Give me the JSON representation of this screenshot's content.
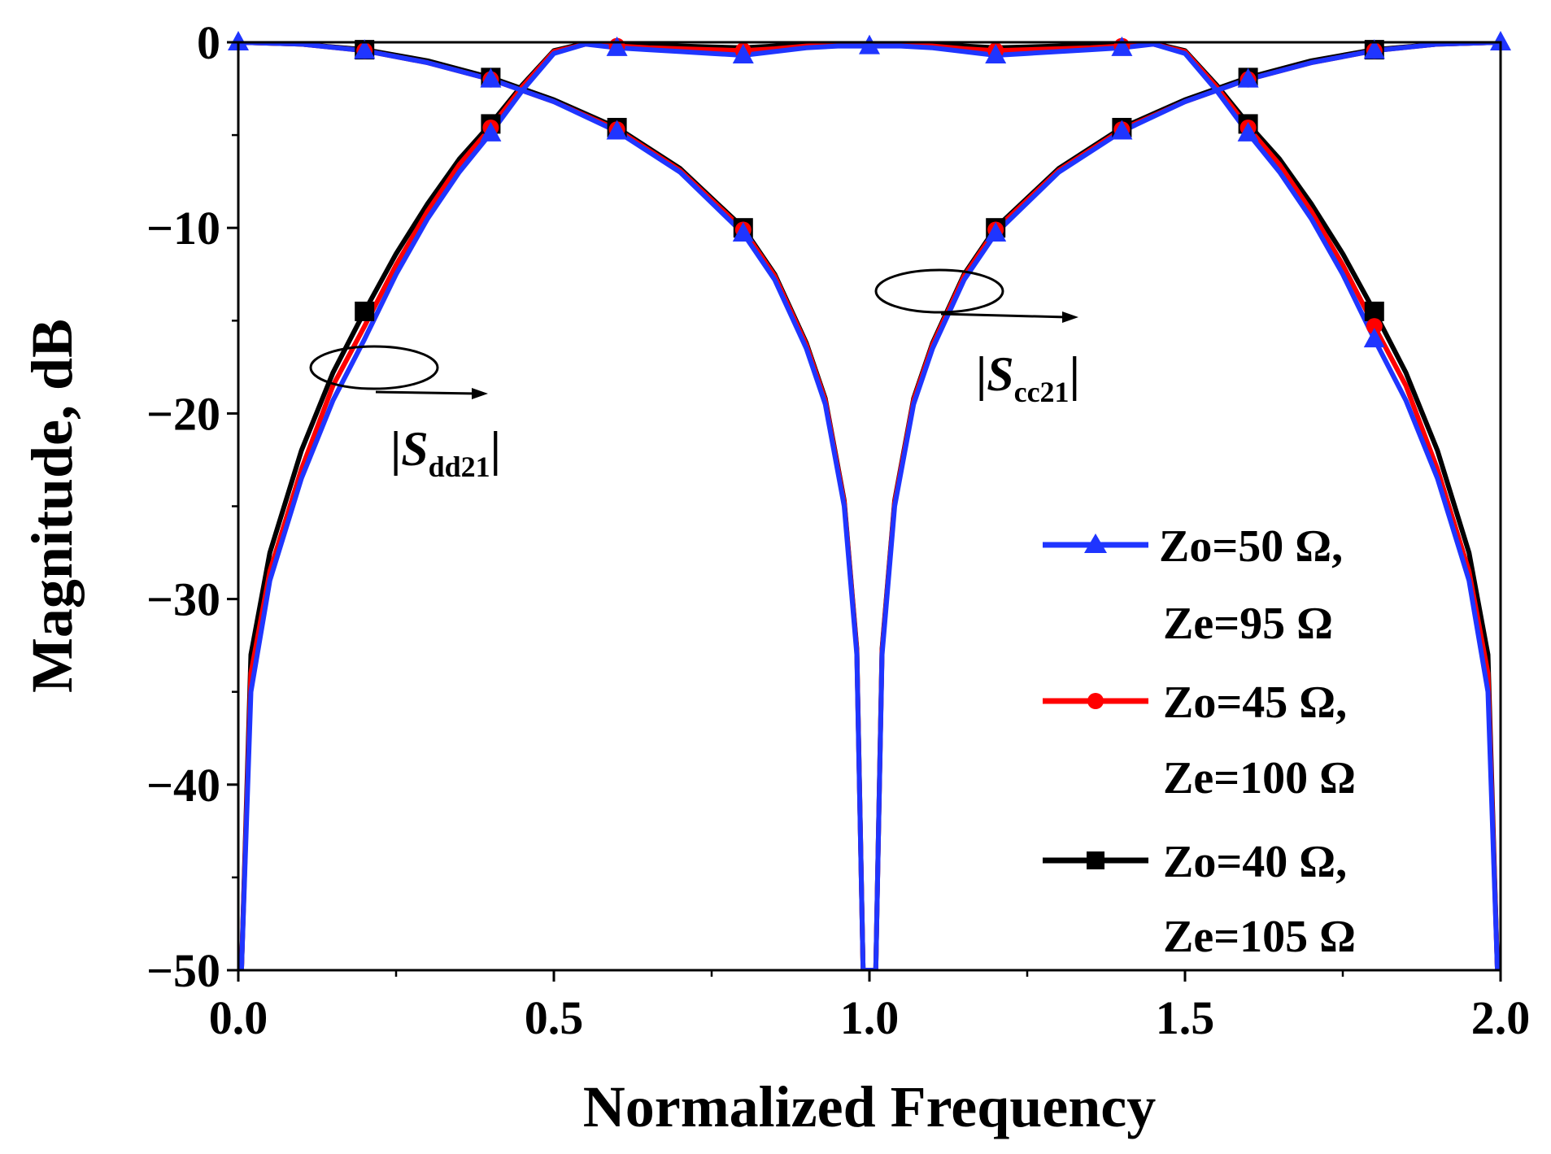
{
  "chart_data": {
    "type": "line",
    "title": "",
    "xlabel": "Normalized Frequency",
    "ylabel": "Magnitude, dB",
    "xlim": [
      0.0,
      2.0
    ],
    "ylim": [
      -50,
      0
    ],
    "x_ticks": [
      "0.0",
      "0.5",
      "1.0",
      "1.5",
      "2.0"
    ],
    "y_ticks": [
      "0",
      "−10",
      "−20",
      "−30",
      "−40",
      "−50"
    ],
    "grid": false,
    "legend_position": "lower-right",
    "legend": [
      {
        "line1": "Zo=50 Ω,",
        "line2": "Ze=95 Ω",
        "color": "#1f35ff",
        "marker": "triangle"
      },
      {
        "line1": "Zo=45 Ω,",
        "line2": "Ze=100 Ω",
        "color": "#ff0000",
        "marker": "circle"
      },
      {
        "line1": "Zo=40 Ω,",
        "line2": "Ze=105 Ω",
        "color": "#000000",
        "marker": "square"
      }
    ],
    "annotations": [
      {
        "bar": "|",
        "symbol": "S",
        "subscript": "dd21",
        "bar_end": "|"
      },
      {
        "bar": "|",
        "symbol": "S",
        "subscript": "cc21",
        "bar_end": "|"
      }
    ],
    "series": [
      {
        "name": "Zo=50 Ω, Ze=95 Ω",
        "color": "#1f35ff",
        "marker": "triangle",
        "marker_x": [
          0.0,
          0.2,
          0.4,
          0.6,
          0.8,
          1.0,
          1.2,
          1.4,
          1.6,
          1.8,
          2.0
        ],
        "curves": {
          "sdd21": {
            "x": [
              0.005,
              0.02,
              0.05,
              0.1,
              0.15,
              0.2,
              0.25,
              0.3,
              0.35,
              0.4,
              0.45,
              0.5,
              0.55,
              0.6,
              0.65,
              0.7,
              0.75,
              0.8,
              0.85,
              0.9,
              0.95,
              1.0,
              1.05,
              1.1,
              1.15,
              1.2,
              1.25,
              1.3,
              1.35,
              1.4,
              1.45,
              1.5,
              1.55,
              1.6,
              1.65,
              1.7,
              1.75,
              1.8,
              1.85,
              1.9,
              1.95,
              1.98,
              1.995
            ],
            "y": [
              -50,
              -35,
              -29,
              -23.5,
              -19.3,
              -16,
              -12.5,
              -9.5,
              -7,
              -4.9,
              -2.6,
              -0.6,
              -0.1,
              -0.3,
              -0.4,
              -0.5,
              -0.6,
              -0.7,
              -0.5,
              -0.3,
              -0.2,
              -0.2,
              -0.2,
              -0.3,
              -0.5,
              -0.7,
              -0.6,
              -0.5,
              -0.4,
              -0.3,
              -0.1,
              -0.6,
              -2.6,
              -4.9,
              -7,
              -9.5,
              -12.5,
              -16,
              -19.3,
              -23.5,
              -29,
              -35,
              -50
            ]
          },
          "scc21": {
            "x": [
              0.0,
              0.1,
              0.2,
              0.3,
              0.4,
              0.5,
              0.6,
              0.7,
              0.8,
              0.85,
              0.9,
              0.93,
              0.96,
              0.98,
              0.99,
              1.01,
              1.02,
              1.04,
              1.07,
              1.1,
              1.15,
              1.2,
              1.3,
              1.4,
              1.5,
              1.6,
              1.7,
              1.8,
              1.9,
              2.0
            ],
            "y": [
              0,
              -0.1,
              -0.45,
              -1.1,
              -2.0,
              -3.2,
              -4.8,
              -7.0,
              -10.3,
              -12.8,
              -16.5,
              -19.5,
              -25,
              -33,
              -50,
              -50,
              -33,
              -25,
              -19.5,
              -16.5,
              -12.8,
              -10.3,
              -7.0,
              -4.8,
              -3.2,
              -2.0,
              -1.1,
              -0.45,
              -0.1,
              0
            ]
          }
        },
        "markers": {
          "sdd21": [
            [
              0.4,
              -4.9
            ],
            [
              0.6,
              -0.3
            ],
            [
              0.8,
              -0.7
            ],
            [
              1.0,
              -0.2
            ],
            [
              1.2,
              -0.7
            ],
            [
              1.4,
              -0.3
            ],
            [
              1.6,
              -4.9
            ],
            [
              1.8,
              -16
            ]
          ],
          "scc21": [
            [
              0.0,
              0
            ],
            [
              0.2,
              -0.45
            ],
            [
              0.4,
              -2.0
            ],
            [
              0.6,
              -4.8
            ],
            [
              0.8,
              -10.3
            ],
            [
              1.2,
              -10.3
            ],
            [
              1.4,
              -4.8
            ],
            [
              1.6,
              -2.0
            ],
            [
              1.8,
              -0.45
            ],
            [
              2.0,
              0
            ]
          ]
        }
      },
      {
        "name": "Zo=45 Ω, Ze=100 Ω",
        "color": "#ff0000",
        "marker": "circle",
        "marker_x": [
          0.0,
          0.2,
          0.4,
          0.6,
          0.8,
          1.0,
          1.2,
          1.4,
          1.6,
          1.8,
          2.0
        ],
        "curves": {
          "sdd21": {
            "x": [
              0.005,
              0.02,
              0.05,
              0.1,
              0.15,
              0.2,
              0.25,
              0.3,
              0.35,
              0.4,
              0.45,
              0.5,
              0.55,
              0.6,
              0.65,
              0.7,
              0.75,
              0.8,
              0.85,
              0.9,
              0.95,
              1.0,
              1.05,
              1.1,
              1.15,
              1.2,
              1.25,
              1.3,
              1.35,
              1.4,
              1.45,
              1.5,
              1.55,
              1.6,
              1.65,
              1.7,
              1.75,
              1.8,
              1.85,
              1.9,
              1.95,
              1.98,
              1.995
            ],
            "y": [
              -50,
              -34,
              -28.5,
              -23,
              -18.5,
              -15.3,
              -12,
              -9.1,
              -6.6,
              -4.6,
              -2.4,
              -0.5,
              -0.1,
              -0.2,
              -0.3,
              -0.35,
              -0.4,
              -0.45,
              -0.35,
              -0.2,
              -0.15,
              -0.15,
              -0.15,
              -0.2,
              -0.35,
              -0.45,
              -0.4,
              -0.35,
              -0.3,
              -0.2,
              -0.1,
              -0.5,
              -2.4,
              -4.6,
              -6.6,
              -9.1,
              -12,
              -15.3,
              -18.5,
              -23,
              -28.5,
              -34,
              -50
            ]
          },
          "scc21": {
            "x": [
              0.0,
              0.1,
              0.2,
              0.3,
              0.4,
              0.5,
              0.6,
              0.7,
              0.8,
              0.85,
              0.9,
              0.93,
              0.96,
              0.98,
              0.99,
              1.01,
              1.02,
              1.04,
              1.07,
              1.1,
              1.15,
              1.2,
              1.3,
              1.4,
              1.5,
              1.6,
              1.7,
              1.8,
              1.9,
              2.0
            ],
            "y": [
              0,
              -0.1,
              -0.45,
              -1.1,
              -2.0,
              -3.2,
              -4.7,
              -6.9,
              -10.1,
              -12.6,
              -16.3,
              -19.3,
              -24.8,
              -32.8,
              -50,
              -50,
              -32.8,
              -24.8,
              -19.3,
              -16.3,
              -12.6,
              -10.1,
              -6.9,
              -4.7,
              -3.2,
              -2.0,
              -1.1,
              -0.45,
              -0.1,
              0
            ]
          }
        },
        "markers": {
          "sdd21": [
            [
              0.4,
              -4.6
            ],
            [
              0.6,
              -0.2
            ],
            [
              0.8,
              -0.45
            ],
            [
              1.2,
              -0.45
            ],
            [
              1.4,
              -0.2
            ],
            [
              1.6,
              -4.6
            ],
            [
              1.8,
              -15.3
            ]
          ],
          "scc21": [
            [
              0.2,
              -0.45
            ],
            [
              0.4,
              -2.0
            ],
            [
              0.6,
              -4.7
            ],
            [
              0.8,
              -10.1
            ],
            [
              1.2,
              -10.1
            ],
            [
              1.4,
              -4.7
            ],
            [
              1.6,
              -2.0
            ],
            [
              1.8,
              -0.45
            ]
          ]
        }
      },
      {
        "name": "Zo=40 Ω, Ze=105 Ω",
        "color": "#000000",
        "marker": "square",
        "marker_x": [
          0.0,
          0.2,
          0.4,
          0.6,
          0.8,
          1.0,
          1.2,
          1.4,
          1.6,
          1.8,
          2.0
        ],
        "curves": {
          "sdd21": {
            "x": [
              0.005,
              0.02,
              0.05,
              0.1,
              0.15,
              0.2,
              0.25,
              0.3,
              0.35,
              0.4,
              0.45,
              0.5,
              0.55,
              0.6,
              0.65,
              0.7,
              0.75,
              0.8,
              0.85,
              0.9,
              0.95,
              1.0,
              1.05,
              1.1,
              1.15,
              1.2,
              1.25,
              1.3,
              1.35,
              1.4,
              1.45,
              1.5,
              1.55,
              1.6,
              1.65,
              1.7,
              1.75,
              1.8,
              1.85,
              1.9,
              1.95,
              1.98,
              1.995
            ],
            "y": [
              -50,
              -33,
              -27.5,
              -22,
              -17.8,
              -14.5,
              -11.4,
              -8.7,
              -6.3,
              -4.4,
              -2.3,
              -0.45,
              -0.05,
              -0.1,
              -0.15,
              -0.2,
              -0.25,
              -0.3,
              -0.2,
              -0.1,
              -0.05,
              -0.05,
              -0.05,
              -0.1,
              -0.2,
              -0.3,
              -0.25,
              -0.2,
              -0.15,
              -0.1,
              -0.05,
              -0.45,
              -2.3,
              -4.4,
              -6.3,
              -8.7,
              -11.4,
              -14.5,
              -17.8,
              -22,
              -27.5,
              -33,
              -50
            ]
          },
          "scc21": {
            "x": [
              0.0,
              0.1,
              0.2,
              0.3,
              0.4,
              0.5,
              0.6,
              0.7,
              0.8,
              0.85,
              0.9,
              0.93,
              0.96,
              0.98,
              0.99,
              1.01,
              1.02,
              1.04,
              1.07,
              1.1,
              1.15,
              1.2,
              1.3,
              1.4,
              1.5,
              1.6,
              1.7,
              1.8,
              1.9,
              2.0
            ],
            "y": [
              0,
              -0.1,
              -0.4,
              -1.0,
              -1.9,
              -3.1,
              -4.6,
              -6.8,
              -10.0,
              -12.5,
              -16.2,
              -19.2,
              -24.7,
              -32.7,
              -50,
              -50,
              -32.7,
              -24.7,
              -19.2,
              -16.2,
              -12.5,
              -10.0,
              -6.8,
              -4.6,
              -3.1,
              -1.9,
              -1.0,
              -0.4,
              -0.1,
              0
            ]
          }
        },
        "markers": {
          "sdd21": [
            [
              0.2,
              -14.5
            ],
            [
              0.4,
              -4.4
            ],
            [
              1.6,
              -4.4
            ],
            [
              1.8,
              -14.5
            ]
          ],
          "scc21": [
            [
              0.2,
              -0.4
            ],
            [
              0.4,
              -1.9
            ],
            [
              0.6,
              -4.6
            ],
            [
              0.8,
              -10.0
            ],
            [
              1.2,
              -10.0
            ],
            [
              1.4,
              -4.6
            ],
            [
              1.6,
              -1.9
            ],
            [
              1.8,
              -0.4
            ]
          ]
        }
      }
    ]
  }
}
